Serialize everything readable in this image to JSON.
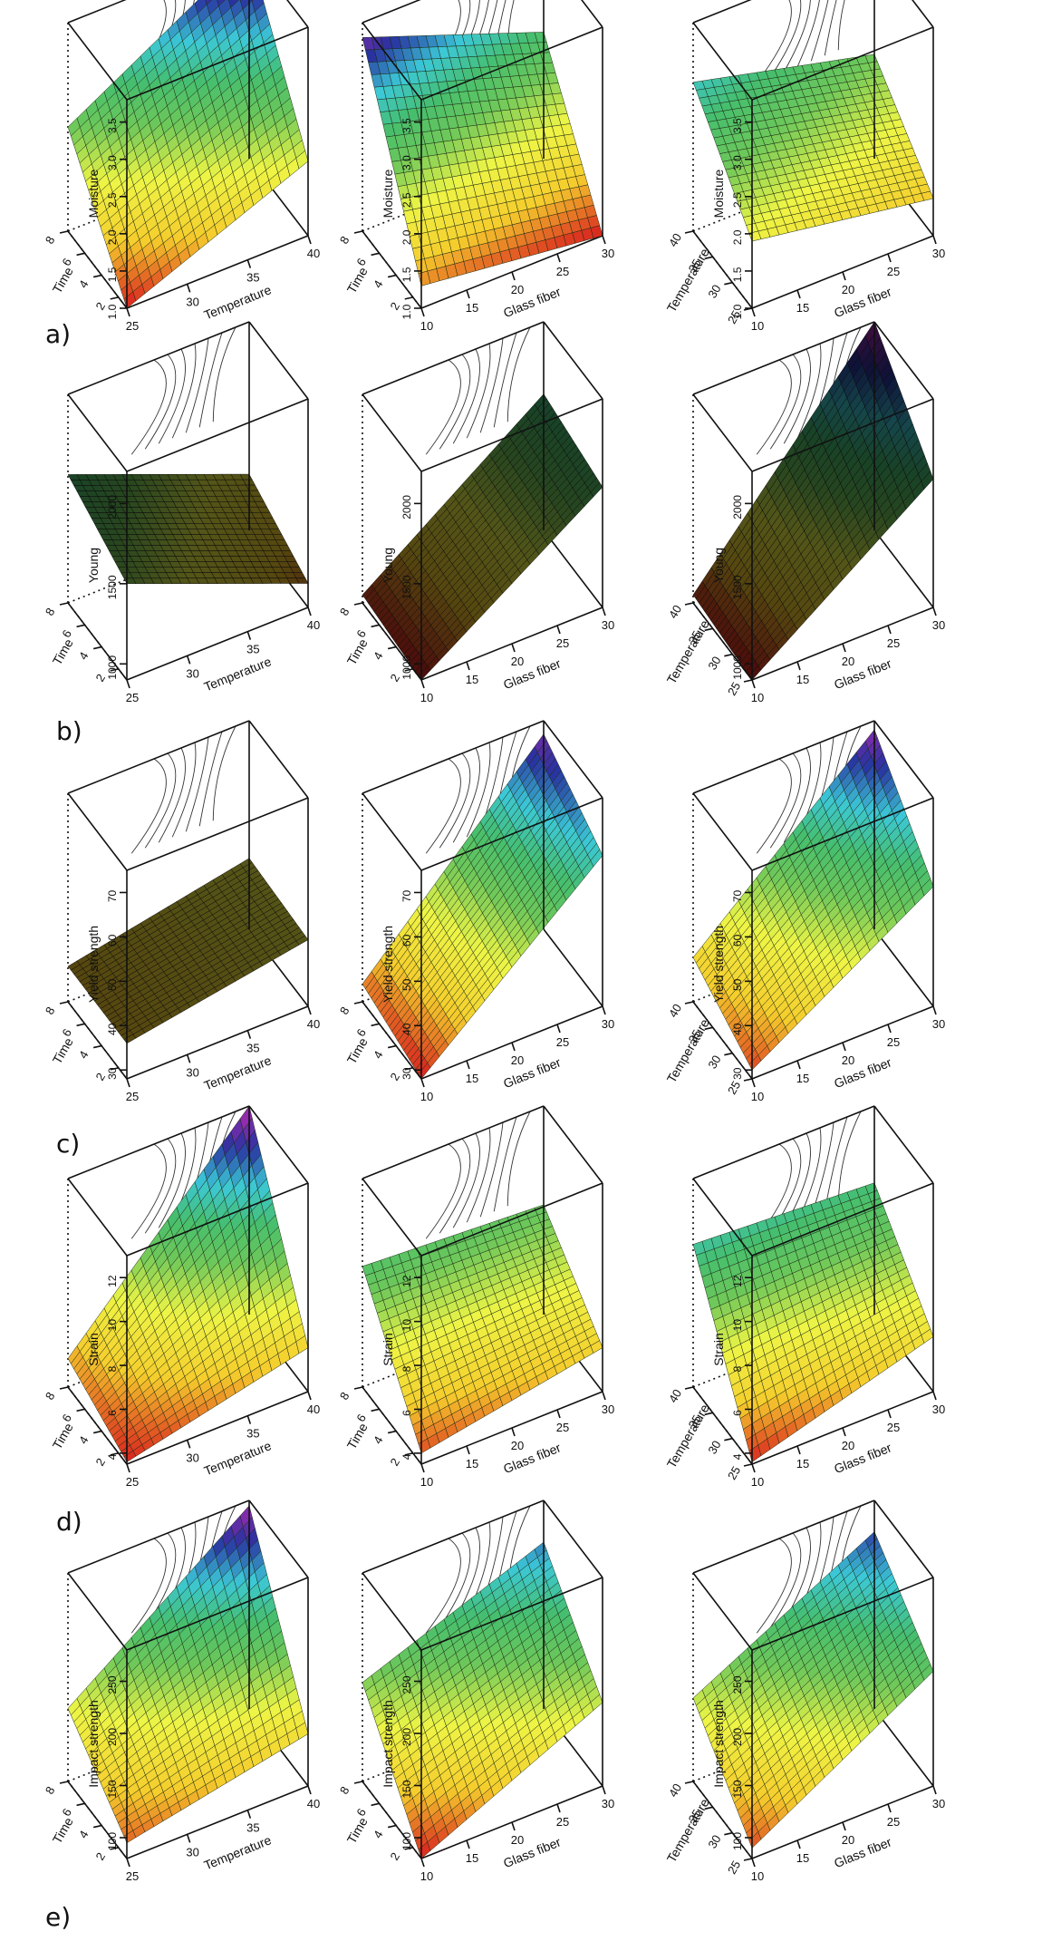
{
  "figure": {
    "row_labels": [
      "a)",
      "b)",
      "c)",
      "d)",
      "e)"
    ]
  },
  "chart_data": [
    {
      "type": "surface3d",
      "row": "a",
      "zlabel": "Moisture",
      "xlabel": "Temperature",
      "ylabel": "Time",
      "xticks": [
        25,
        30,
        35,
        40
      ],
      "yticks": [
        2,
        4,
        6,
        8
      ],
      "zticks": [
        "1.0",
        "1.5",
        "2.0",
        "2.5",
        "3.0",
        "3.5"
      ],
      "xlim": [
        25,
        40
      ],
      "ylim": [
        1,
        8
      ],
      "zlim": [
        1.0,
        3.8
      ],
      "corners": {
        "x0y0": 1.0,
        "x1y0": 2.0,
        "x0y1": 2.4,
        "x1y1": 3.8
      },
      "colormap": "rainbow"
    },
    {
      "type": "surface3d",
      "row": "a",
      "zlabel": "Moisture",
      "xlabel": "Glass fiber",
      "ylabel": "Time",
      "xticks": [
        10,
        15,
        20,
        25,
        30
      ],
      "yticks": [
        2,
        4,
        6,
        8
      ],
      "zticks": [
        "1.0",
        "1.5",
        "2.0",
        "2.5",
        "3.0",
        "3.5"
      ],
      "xlim": [
        10,
        30
      ],
      "ylim": [
        1,
        8
      ],
      "zlim": [
        1.0,
        3.8
      ],
      "corners": {
        "x0y0": 1.3,
        "x1y0": 1.0,
        "x0y1": 3.6,
        "x1y1": 2.7
      },
      "colormap": "rainbow"
    },
    {
      "type": "surface3d",
      "row": "a",
      "zlabel": "Moisture",
      "xlabel": "Glass fiber",
      "ylabel": "Temperature",
      "xticks": [
        10,
        15,
        20,
        25,
        30
      ],
      "yticks": [
        25,
        30,
        35,
        40
      ],
      "zticks": [
        "1.0",
        "1.5",
        "2.0",
        "2.5",
        "3.0",
        "3.5"
      ],
      "xlim": [
        10,
        30
      ],
      "ylim": [
        25,
        40
      ],
      "zlim": [
        1.0,
        3.8
      ],
      "corners": {
        "x0y0": 1.9,
        "x1y0": 1.5,
        "x0y1": 3.0,
        "x1y1": 2.4
      },
      "colormap": "rainbow"
    },
    {
      "type": "surface3d",
      "row": "b",
      "zlabel": "Young",
      "xlabel": "Temperature",
      "ylabel": "Time",
      "xticks": [
        25,
        30,
        35,
        40
      ],
      "yticks": [
        2,
        4,
        6,
        8
      ],
      "zticks": [
        "1000",
        "1500",
        "2000"
      ],
      "xlim": [
        25,
        40
      ],
      "ylim": [
        1,
        8
      ],
      "zlim": [
        900,
        2200
      ],
      "corners": {
        "x0y0": 1500,
        "x1y0": 1050,
        "x0y1": 1700,
        "x1y1": 1250
      },
      "colormap": "dark"
    },
    {
      "type": "surface3d",
      "row": "b",
      "zlabel": "Young",
      "xlabel": "Glass fiber",
      "ylabel": "Time",
      "xticks": [
        10,
        15,
        20,
        25,
        30
      ],
      "yticks": [
        2,
        4,
        6,
        8
      ],
      "zticks": [
        "1000",
        "1500",
        "2000"
      ],
      "xlim": [
        10,
        30
      ],
      "ylim": [
        1,
        8
      ],
      "zlim": [
        900,
        2200
      ],
      "corners": {
        "x0y0": 900,
        "x1y0": 1650,
        "x0y1": 950,
        "x1y1": 1750
      },
      "colormap": "dark"
    },
    {
      "type": "surface3d",
      "row": "b",
      "zlabel": "Young",
      "xlabel": "Glass fiber",
      "ylabel": "Temperature",
      "xticks": [
        10,
        15,
        20,
        25,
        30
      ],
      "yticks": [
        25,
        30,
        35,
        40
      ],
      "zticks": [
        "1000",
        "1500",
        "2000"
      ],
      "xlim": [
        10,
        30
      ],
      "ylim": [
        25,
        40
      ],
      "zlim": [
        900,
        2200
      ],
      "corners": {
        "x0y0": 900,
        "x1y0": 1700,
        "x0y1": 950,
        "x1y1": 2200
      },
      "colormap": "dark"
    },
    {
      "type": "surface3d",
      "row": "c",
      "zlabel": "Yield strength",
      "xlabel": "Temperature",
      "ylabel": "Time",
      "xticks": [
        25,
        30,
        35,
        40
      ],
      "yticks": [
        2,
        4,
        6,
        8
      ],
      "zticks": [
        "30",
        "40",
        "50",
        "60",
        "70"
      ],
      "xlim": [
        25,
        40
      ],
      "ylim": [
        1,
        8
      ],
      "zlim": [
        28,
        75
      ],
      "corners": {
        "x0y0": 36,
        "x1y0": 43,
        "x0y1": 36,
        "x1y1": 44
      },
      "colormap": "dark"
    },
    {
      "type": "surface3d",
      "row": "c",
      "zlabel": "Yield strength",
      "xlabel": "Glass fiber",
      "ylabel": "Time",
      "xticks": [
        10,
        15,
        20,
        25,
        30
      ],
      "yticks": [
        2,
        4,
        6,
        8
      ],
      "zticks": [
        "30",
        "40",
        "50",
        "60",
        "70"
      ],
      "xlim": [
        10,
        30
      ],
      "ylim": [
        1,
        8
      ],
      "zlim": [
        28,
        75
      ],
      "corners": {
        "x0y0": 28,
        "x1y0": 62,
        "x0y1": 32,
        "x1y1": 72
      },
      "colormap": "rainbow"
    },
    {
      "type": "surface3d",
      "row": "c",
      "zlabel": "Yield strength",
      "xlabel": "Glass fiber",
      "ylabel": "Temperature",
      "xticks": [
        10,
        15,
        20,
        25,
        30
      ],
      "yticks": [
        25,
        30,
        35,
        40
      ],
      "zticks": [
        "30",
        "40",
        "50",
        "60",
        "70"
      ],
      "xlim": [
        10,
        30
      ],
      "ylim": [
        25,
        40
      ],
      "zlim": [
        28,
        75
      ],
      "corners": {
        "x0y0": 30,
        "x1y0": 55,
        "x0y1": 38,
        "x1y1": 73
      },
      "colormap": "rainbow"
    },
    {
      "type": "surface3d",
      "row": "d",
      "zlabel": "Strain",
      "xlabel": "Temperature",
      "ylabel": "Time",
      "xticks": [
        25,
        30,
        35,
        40
      ],
      "yticks": [
        2,
        4,
        6,
        8
      ],
      "zticks": [
        "4",
        "6",
        "8",
        "10",
        "12"
      ],
      "xlim": [
        25,
        40
      ],
      "ylim": [
        1,
        8
      ],
      "zlim": [
        3.5,
        13
      ],
      "corners": {
        "x0y0": 3.6,
        "x1y0": 5.5,
        "x0y1": 4.8,
        "x1y1": 13.0
      },
      "colormap": "rainbow"
    },
    {
      "type": "surface3d",
      "row": "d",
      "zlabel": "Strain",
      "xlabel": "Glass fiber",
      "ylabel": "Time",
      "xticks": [
        10,
        15,
        20,
        25,
        30
      ],
      "yticks": [
        2,
        4,
        6,
        8
      ],
      "zticks": [
        "4",
        "6",
        "8",
        "10",
        "12"
      ],
      "xlim": [
        10,
        30
      ],
      "ylim": [
        1,
        8
      ],
      "zlim": [
        3.5,
        13
      ],
      "corners": {
        "x0y0": 4.0,
        "x1y0": 5.5,
        "x0y1": 9.0,
        "x1y1": 8.5
      },
      "colormap": "rainbow"
    },
    {
      "type": "surface3d",
      "row": "d",
      "zlabel": "Strain",
      "xlabel": "Glass fiber",
      "ylabel": "Temperature",
      "xticks": [
        10,
        15,
        20,
        25,
        30
      ],
      "yticks": [
        25,
        30,
        35,
        40
      ],
      "zticks": [
        "4",
        "6",
        "8",
        "10",
        "12"
      ],
      "xlim": [
        10,
        30
      ],
      "ylim": [
        25,
        40
      ],
      "zlim": [
        3.5,
        13
      ],
      "corners": {
        "x0y0": 3.6,
        "x1y0": 6.0,
        "x0y1": 10.0,
        "x1y1": 9.5
      },
      "colormap": "rainbow"
    },
    {
      "type": "surface3d",
      "row": "e",
      "zlabel": "Impact strength",
      "xlabel": "Temperature",
      "ylabel": "Time",
      "xticks": [
        25,
        30,
        35,
        40
      ],
      "yticks": [
        2,
        4,
        6,
        8
      ],
      "zticks": [
        "100",
        "150",
        "200",
        "250"
      ],
      "xlim": [
        25,
        40
      ],
      "ylim": [
        1,
        8
      ],
      "zlim": [
        80,
        280
      ],
      "corners": {
        "x0y0": 95,
        "x1y0": 130,
        "x0y1": 150,
        "x1y1": 275
      },
      "colormap": "rainbow"
    },
    {
      "type": "surface3d",
      "row": "e",
      "zlabel": "Impact strength",
      "xlabel": "Glass fiber",
      "ylabel": "Time",
      "xticks": [
        10,
        15,
        20,
        25,
        30
      ],
      "yticks": [
        2,
        4,
        6,
        8
      ],
      "zticks": [
        "100",
        "150",
        "200",
        "250"
      ],
      "xlim": [
        10,
        30
      ],
      "ylim": [
        1,
        8
      ],
      "zlim": [
        80,
        280
      ],
      "corners": {
        "x0y0": 80,
        "x1y0": 160,
        "x0y1": 175,
        "x1y1": 240
      },
      "colormap": "rainbow"
    },
    {
      "type": "surface3d",
      "row": "e",
      "zlabel": "Impact strength",
      "xlabel": "Glass fiber",
      "ylabel": "Temperature",
      "xticks": [
        10,
        15,
        20,
        25,
        30
      ],
      "yticks": [
        25,
        30,
        35,
        40
      ],
      "zticks": [
        "100",
        "150",
        "200",
        "250"
      ],
      "xlim": [
        10,
        30
      ],
      "ylim": [
        25,
        40
      ],
      "zlim": [
        80,
        280
      ],
      "corners": {
        "x0y0": 90,
        "x1y0": 190,
        "x0y1": 160,
        "x1y1": 250
      },
      "colormap": "rainbow"
    }
  ]
}
